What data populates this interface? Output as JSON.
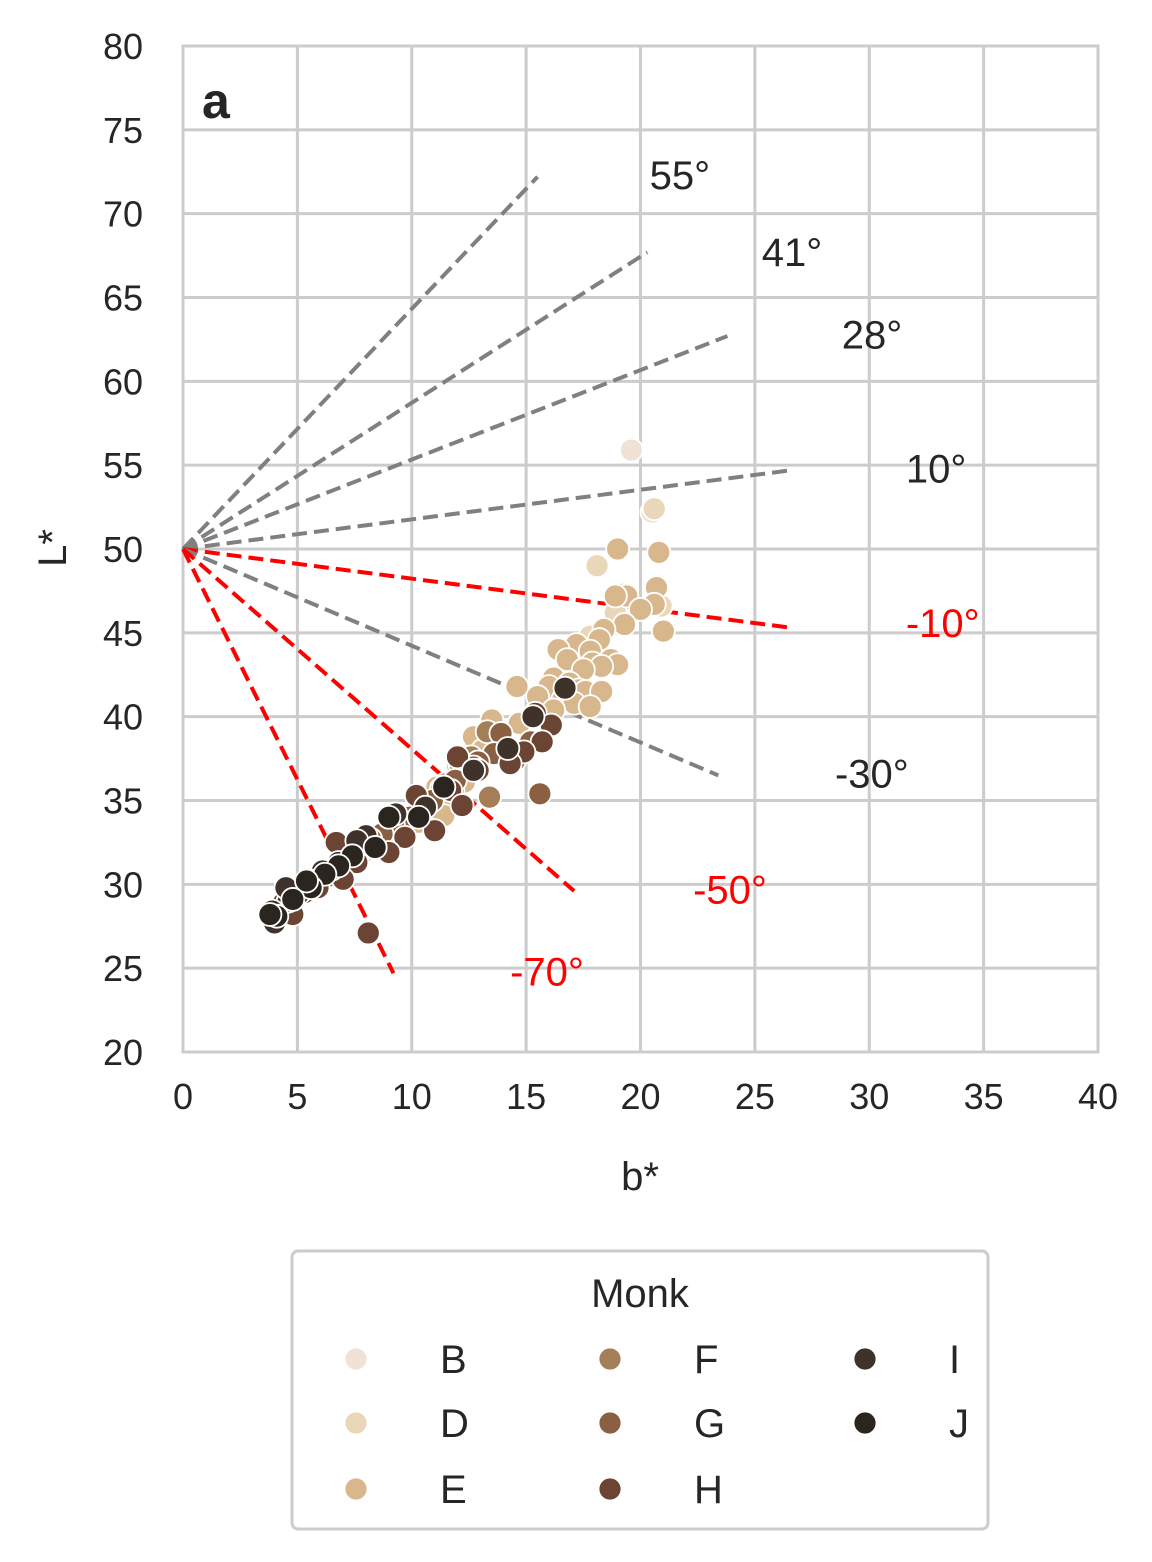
{
  "chart_data": {
    "type": "scatter",
    "panel_label": "a",
    "xlabel": "b*",
    "ylabel": "L*",
    "xlim": [
      0,
      40
    ],
    "ylim": [
      20,
      80
    ],
    "xticks": [
      0,
      5,
      10,
      15,
      20,
      25,
      30,
      35,
      40
    ],
    "yticks": [
      20,
      25,
      30,
      35,
      40,
      45,
      50,
      55,
      60,
      65,
      70,
      75,
      80
    ],
    "grid": true,
    "origin": {
      "x": 0,
      "y": 50
    },
    "reference_lines": [
      {
        "angle": 55,
        "label": "55°",
        "end": [
          15.5,
          72.2
        ],
        "color": "#808080"
      },
      {
        "angle": 41,
        "label": "41°",
        "end": [
          20.3,
          67.7
        ],
        "color": "#808080"
      },
      {
        "angle": 28,
        "label": "28°",
        "end": [
          23.8,
          62.7
        ],
        "color": "#808080"
      },
      {
        "angle": 10,
        "label": "10°",
        "end": [
          26.6,
          54.7
        ],
        "color": "#808080"
      },
      {
        "angle": -10,
        "label": "-10°",
        "end": [
          26.6,
          45.3
        ],
        "color": "#ff0000"
      },
      {
        "angle": -30,
        "label": "-30°",
        "end": [
          23.4,
          36.5
        ],
        "color": "#808080"
      },
      {
        "angle": -50,
        "label": "-50°",
        "end": [
          17.1,
          29.6
        ],
        "color": "#ff0000"
      },
      {
        "angle": -70,
        "label": "-70°",
        "end": [
          9.2,
          24.7
        ],
        "color": "#ff0000"
      }
    ],
    "angle_labels": [
      {
        "label": "55°",
        "x": 20.4,
        "y": 72.3,
        "color": "#262626"
      },
      {
        "label": "41°",
        "x": 25.3,
        "y": 67.7,
        "color": "#262626"
      },
      {
        "label": "28°",
        "x": 28.8,
        "y": 62.8,
        "color": "#262626"
      },
      {
        "label": "10°",
        "x": 31.6,
        "y": 54.8,
        "color": "#262626"
      },
      {
        "label": "-10°",
        "x": 31.6,
        "y": 45.6,
        "color": "#ff0000"
      },
      {
        "label": "-30°",
        "x": 28.5,
        "y": 36.6,
        "color": "#262626"
      },
      {
        "label": "-50°",
        "x": 22.3,
        "y": 29.7,
        "color": "#ff0000"
      },
      {
        "label": "-70°",
        "x": 14.3,
        "y": 24.8,
        "color": "#ff0000"
      }
    ],
    "legend": {
      "title": "Monk",
      "placement": "bottom-center",
      "columns": 3
    },
    "series": [
      {
        "name": "B",
        "color": "#f0e2d5",
        "points": [
          [
            19.6,
            55.9
          ],
          [
            20.5,
            52.2
          ]
        ]
      },
      {
        "name": "D",
        "color": "#ead6b9",
        "points": [
          [
            18.1,
            49.0
          ],
          [
            20.6,
            52.4
          ],
          [
            19.2,
            47.3
          ],
          [
            20.9,
            46.6
          ],
          [
            17.8,
            44.8
          ],
          [
            18.9,
            46.2
          ]
        ]
      },
      {
        "name": "E",
        "color": "#d8b78d",
        "points": [
          [
            19.0,
            50.0
          ],
          [
            20.8,
            49.8
          ],
          [
            20.7,
            47.7
          ],
          [
            19.4,
            47.2
          ],
          [
            18.9,
            47.2
          ],
          [
            20.6,
            46.7
          ],
          [
            20.0,
            46.4
          ],
          [
            21.0,
            45.1
          ],
          [
            19.3,
            45.5
          ],
          [
            18.4,
            45.2
          ],
          [
            18.2,
            44.6
          ],
          [
            17.2,
            44.3
          ],
          [
            16.4,
            44.0
          ],
          [
            17.8,
            43.9
          ],
          [
            16.8,
            43.4
          ],
          [
            18.7,
            43.4
          ],
          [
            17.9,
            43.2
          ],
          [
            19.0,
            43.1
          ],
          [
            18.3,
            43.0
          ],
          [
            17.5,
            42.8
          ],
          [
            16.2,
            42.3
          ],
          [
            16.9,
            42.0
          ],
          [
            17.3,
            41.6
          ],
          [
            16.0,
            41.8
          ],
          [
            14.6,
            41.8
          ],
          [
            17.6,
            41.5
          ],
          [
            18.3,
            41.5
          ],
          [
            15.5,
            41.2
          ],
          [
            16.6,
            41.0
          ],
          [
            17.1,
            40.8
          ],
          [
            17.8,
            40.6
          ],
          [
            16.2,
            40.4
          ],
          [
            15.3,
            40.0
          ],
          [
            14.7,
            39.6
          ],
          [
            13.5,
            39.8
          ],
          [
            12.7,
            38.8
          ],
          [
            14.0,
            38.4
          ],
          [
            13.1,
            38.0
          ],
          [
            12.0,
            37.1
          ],
          [
            12.9,
            36.8
          ],
          [
            12.3,
            36.1
          ],
          [
            11.1,
            35.8
          ],
          [
            11.6,
            35.2
          ],
          [
            10.7,
            34.7
          ],
          [
            11.4,
            34.1
          ],
          [
            10.3,
            33.7
          ],
          [
            9.5,
            33.1
          ],
          [
            8.6,
            32.5
          ],
          [
            7.8,
            31.8
          ],
          [
            7.3,
            31.3
          ]
        ]
      },
      {
        "name": "F",
        "color": "#a47e56",
        "points": [
          [
            13.3,
            39.1
          ],
          [
            13.4,
            35.2
          ],
          [
            12.1,
            37.2
          ],
          [
            11.8,
            35.6
          ],
          [
            10.8,
            34.9
          ],
          [
            12.6,
            37.6
          ],
          [
            11.5,
            36.0
          ],
          [
            9.9,
            34.1
          ],
          [
            8.9,
            33.0
          ],
          [
            7.7,
            31.9
          ],
          [
            7.2,
            31.4
          ],
          [
            6.4,
            30.5
          ]
        ]
      },
      {
        "name": "G",
        "color": "#8a5f42",
        "points": [
          [
            13.9,
            39.0
          ],
          [
            15.2,
            38.5
          ],
          [
            14.5,
            37.4
          ],
          [
            13.6,
            37.8
          ],
          [
            12.9,
            37.3
          ],
          [
            15.6,
            35.4
          ],
          [
            12.7,
            37.0
          ],
          [
            11.9,
            36.2
          ],
          [
            11.3,
            35.7
          ],
          [
            10.9,
            35.0
          ],
          [
            10.5,
            34.5
          ],
          [
            9.9,
            34.0
          ],
          [
            9.2,
            33.5
          ],
          [
            8.7,
            33.0
          ],
          [
            8.2,
            32.7
          ],
          [
            7.7,
            32.2
          ],
          [
            7.1,
            31.5
          ],
          [
            6.5,
            31.0
          ],
          [
            6.0,
            30.4
          ],
          [
            5.5,
            30.0
          ],
          [
            5.0,
            29.5
          ],
          [
            4.6,
            29.0
          ],
          [
            4.4,
            28.3
          ]
        ]
      },
      {
        "name": "H",
        "color": "#6b4434",
        "points": [
          [
            15.4,
            40.2
          ],
          [
            16.1,
            39.5
          ],
          [
            15.7,
            38.5
          ],
          [
            14.9,
            37.9
          ],
          [
            14.3,
            37.2
          ],
          [
            12.0,
            37.6
          ],
          [
            12.9,
            36.8
          ],
          [
            11.7,
            35.6
          ],
          [
            12.2,
            34.7
          ],
          [
            10.2,
            35.3
          ],
          [
            11.0,
            33.2
          ],
          [
            9.7,
            32.8
          ],
          [
            9.0,
            31.9
          ],
          [
            8.4,
            32.2
          ],
          [
            7.6,
            31.3
          ],
          [
            6.7,
            32.5
          ],
          [
            6.2,
            30.6
          ],
          [
            5.3,
            29.5
          ],
          [
            4.8,
            28.2
          ],
          [
            8.1,
            27.1
          ],
          [
            4.4,
            28.9
          ],
          [
            7.0,
            30.3
          ],
          [
            5.9,
            29.8
          ],
          [
            6.5,
            30.9
          ]
        ]
      },
      {
        "name": "I",
        "color": "#3e322a",
        "points": [
          [
            16.7,
            41.7
          ],
          [
            15.3,
            40.0
          ],
          [
            14.2,
            38.1
          ],
          [
            12.7,
            36.8
          ],
          [
            11.4,
            35.8
          ],
          [
            10.6,
            34.6
          ],
          [
            9.3,
            34.2
          ],
          [
            8.0,
            32.9
          ],
          [
            7.6,
            32.6
          ],
          [
            6.8,
            31.3
          ],
          [
            6.1,
            30.8
          ],
          [
            5.6,
            30.2
          ],
          [
            5.1,
            29.5
          ],
          [
            4.6,
            29.0
          ],
          [
            4.5,
            29.8
          ],
          [
            3.9,
            28.4
          ],
          [
            4.0,
            27.7
          ]
        ]
      },
      {
        "name": "J",
        "color": "#2b2520",
        "points": [
          [
            11.4,
            35.8
          ],
          [
            10.3,
            34.0
          ],
          [
            9.0,
            34.0
          ],
          [
            8.4,
            32.2
          ],
          [
            7.4,
            31.7
          ],
          [
            6.8,
            31.1
          ],
          [
            6.2,
            30.6
          ],
          [
            5.6,
            29.8
          ],
          [
            5.4,
            30.2
          ],
          [
            4.8,
            29.1
          ],
          [
            4.1,
            28.1
          ],
          [
            3.8,
            28.2
          ]
        ]
      }
    ]
  }
}
